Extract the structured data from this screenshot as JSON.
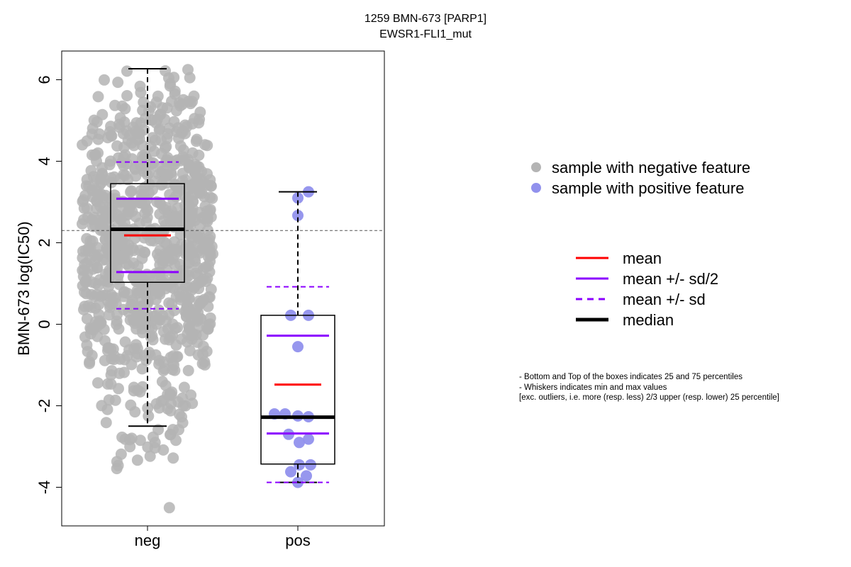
{
  "chart_data": {
    "type": "box",
    "title": "1259 BMN-673 [PARP1]",
    "subtitle": "EWSR1-FLI1_mut",
    "xlabel": "",
    "ylabel": "BMN-673 log(IC50)",
    "ylim": [
      -4.9,
      6.8
    ],
    "y_ticks": [
      -4,
      -2,
      0,
      2,
      4,
      6
    ],
    "categories": [
      "neg",
      "pos"
    ],
    "reference_line": 2.3,
    "groups": [
      {
        "name": "neg",
        "color": "#b4b4b4",
        "stats": {
          "min": -2.5,
          "q1": 1.03,
          "median": 2.33,
          "q3": 3.45,
          "max": 6.27,
          "mean": 2.18,
          "mean_minus_half_sd": 1.28,
          "mean_plus_half_sd": 3.08,
          "mean_minus_sd": 0.38,
          "mean_plus_sd": 3.98
        },
        "points_summary": {
          "count": 900,
          "range": [
            -4.5,
            6.27
          ]
        }
      },
      {
        "name": "pos",
        "color": "#9191ed",
        "stats": {
          "min": -3.88,
          "q1": -3.43,
          "median": -2.28,
          "q3": 0.22,
          "max": 3.25,
          "mean": -1.48,
          "mean_minus_half_sd": -2.68,
          "mean_plus_half_sd": -0.28,
          "mean_minus_sd": -3.88,
          "mean_plus_sd": 0.92
        },
        "points": [
          3.25,
          3.1,
          2.67,
          0.22,
          0.22,
          -0.55,
          -2.2,
          -2.2,
          -2.25,
          -2.27,
          -2.7,
          -2.82,
          -2.9,
          -3.45,
          -3.45,
          -3.62,
          -3.72,
          -3.88
        ]
      }
    ],
    "legend_points": [
      {
        "label": "sample with negative feature",
        "color": "#b4b4b4"
      },
      {
        "label": "sample with positive feature",
        "color": "#9191ed"
      }
    ],
    "legend_lines": [
      {
        "label": "mean",
        "color": "#ff0000",
        "style": "solid"
      },
      {
        "label": "mean +/- sd/2",
        "color": "#8b00ff",
        "style": "solid"
      },
      {
        "label": "mean +/- sd",
        "color": "#8b00ff",
        "style": "dashed"
      },
      {
        "label": "median",
        "color": "#000000",
        "style": "solid-thick"
      }
    ],
    "notes": [
      "- Bottom and Top of the boxes indicates 25 and 75 percentiles",
      "- Whiskers indicates min and max values",
      "[exc. outliers, i.e. more (resp. less) 2/3 upper (resp. lower) 25 percentile]"
    ]
  }
}
